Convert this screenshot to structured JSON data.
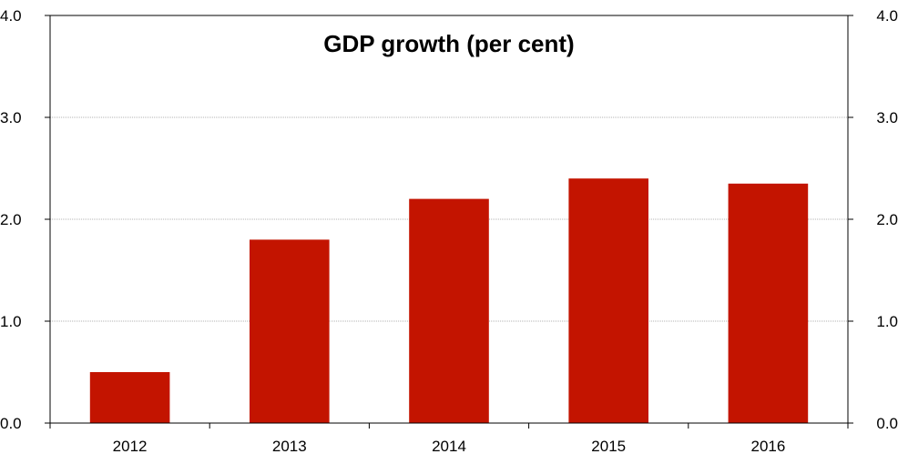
{
  "chart_data": {
    "type": "bar",
    "title": "GDP growth (per cent)",
    "categories": [
      "2012",
      "2013",
      "2014",
      "2015",
      "2016"
    ],
    "values": [
      0.5,
      1.8,
      2.2,
      2.4,
      2.35
    ],
    "ylim": [
      0,
      4
    ],
    "yticks": [
      "0.0",
      "1.0",
      "2.0",
      "3.0",
      "4.0"
    ],
    "secondary_y_axis": true,
    "grid": true,
    "bar_color": "#c31400",
    "grid_color": "#9a9a9a"
  }
}
